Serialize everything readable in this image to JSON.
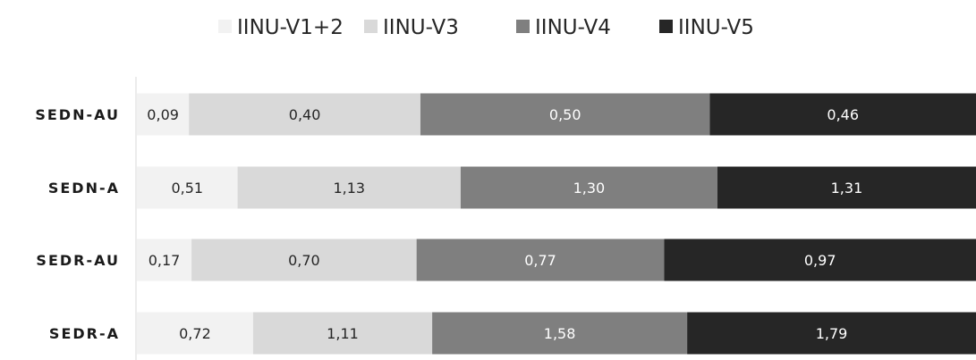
{
  "chart_data": {
    "type": "bar",
    "orientation": "horizontal",
    "stacked": true,
    "title": "",
    "xlabel": "",
    "ylabel": "",
    "legend_position": "top",
    "grid": false,
    "categories": [
      "SEDN-AU",
      "SEDN-A",
      "SEDR-AU",
      "SEDR-A"
    ],
    "series": [
      {
        "name": "IINU-V1+2",
        "color": "#f2f2f2",
        "label_color": "#262626",
        "values": [
          0.09,
          0.51,
          0.17,
          0.72
        ],
        "labels": [
          "0,09",
          "0,51",
          "0,17",
          "0,72"
        ]
      },
      {
        "name": "IINU-V3",
        "color": "#d9d9d9",
        "label_color": "#262626",
        "values": [
          0.4,
          1.13,
          0.7,
          1.11
        ],
        "labels": [
          "0,40",
          "1,13",
          "0,70",
          "1,11"
        ]
      },
      {
        "name": "IINU-V4",
        "color": "#7f7f7f",
        "label_color": "#ffffff",
        "values": [
          0.5,
          1.3,
          0.77,
          1.58
        ],
        "labels": [
          "0,50",
          "1,30",
          "0,77",
          "1,58"
        ]
      },
      {
        "name": "IINU-V5",
        "color": "#262626",
        "label_color": "#ffffff",
        "values": [
          0.46,
          1.31,
          0.97,
          1.79
        ],
        "labels": [
          "0,46",
          "1,31",
          "0,97",
          "1,79"
        ]
      }
    ]
  }
}
